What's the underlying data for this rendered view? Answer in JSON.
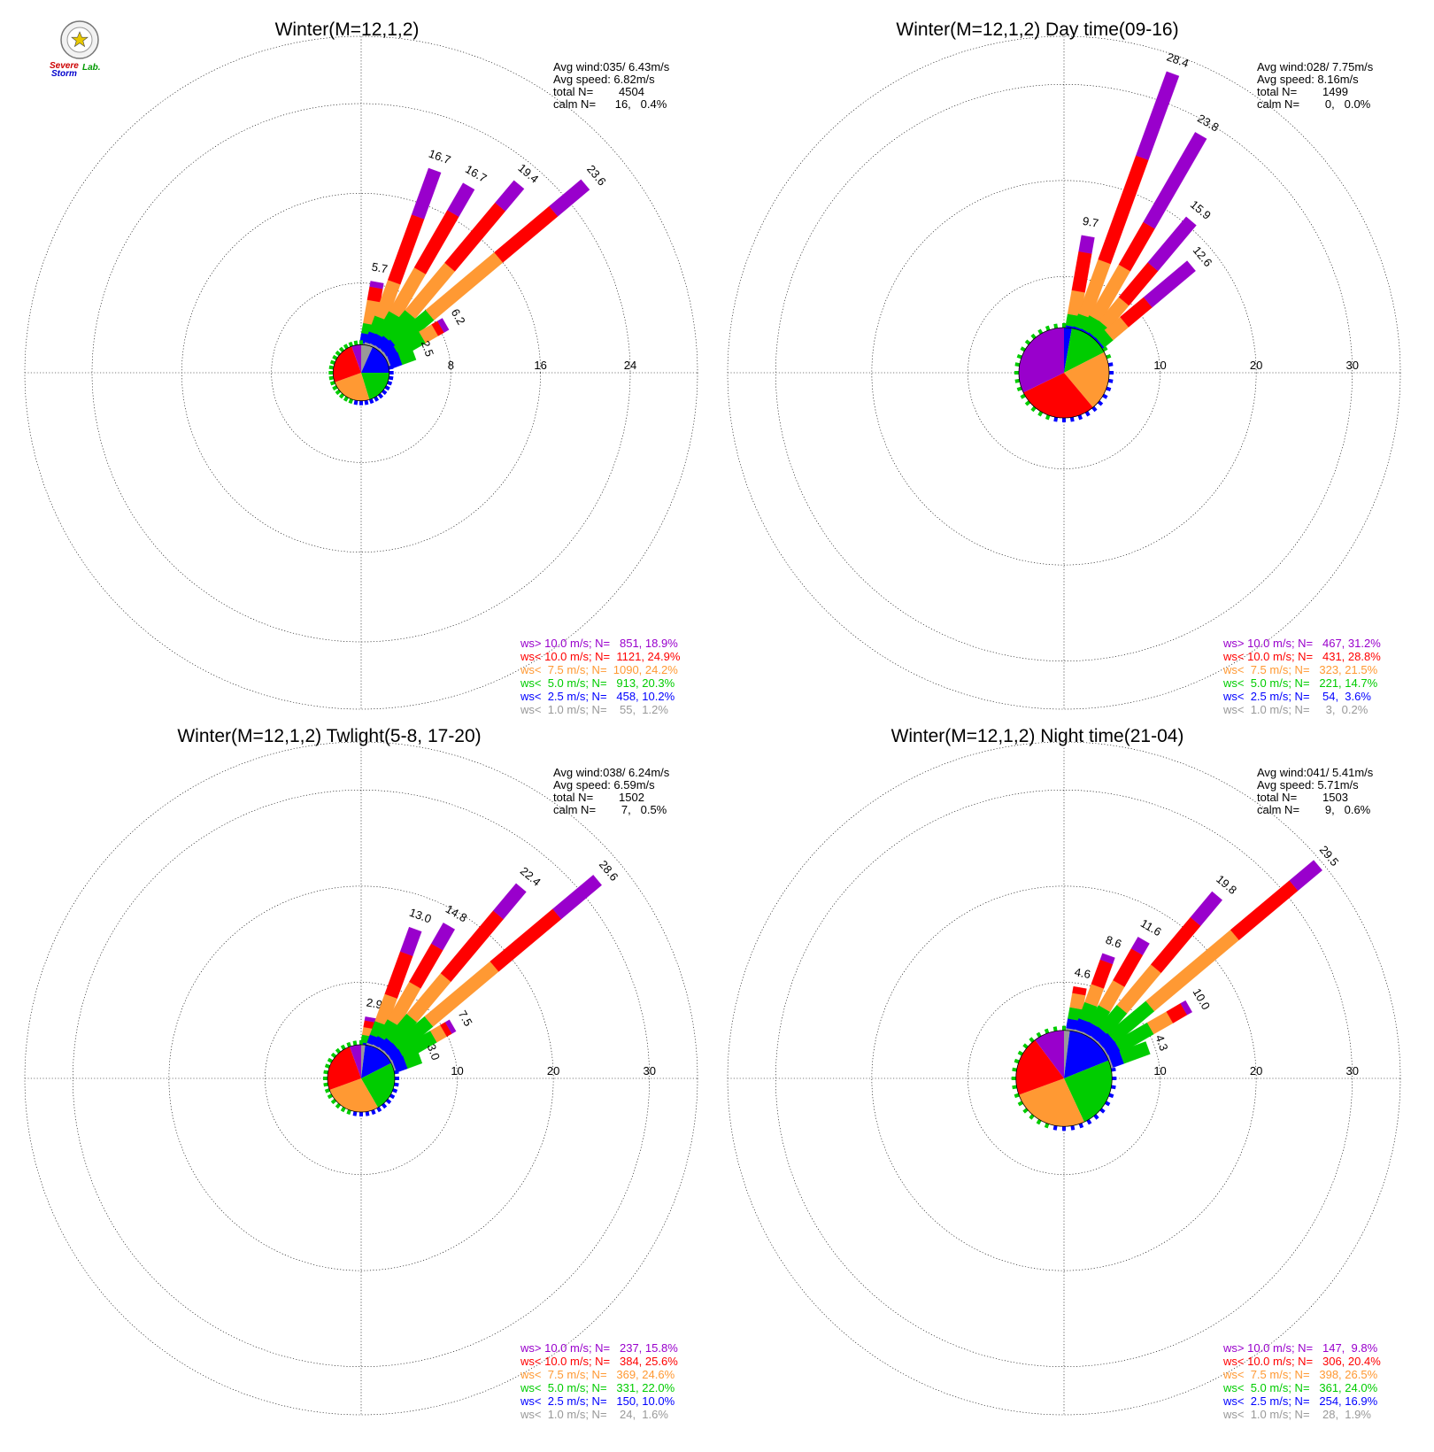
{
  "logo": {
    "text_a": "Severe",
    "text_b": "Storm",
    "text_c": "Lab."
  },
  "colors": {
    "ws_gt_10": "#9900cc",
    "ws_lt_10": "#ff0000",
    "ws_lt_7_5": "#ff9933",
    "ws_lt_5": "#00cc00",
    "ws_lt_2_5": "#0000ff",
    "ws_lt_1": "#999999"
  },
  "chart_data": [
    {
      "type": "windrose",
      "title": "Winter(M=12,1,2)",
      "max_radius": 30,
      "rings": [
        8,
        16,
        24
      ],
      "center_radius": 2.5,
      "info": [
        "Avg wind:035/ 6.43m/s",
        "Avg speed: 6.82m/s",
        "total N=        4504",
        "calm N=      16,   0.4%"
      ],
      "legend": [
        {
          "text": "ws> 10.0 m/s; N=   851, 18.9%",
          "color": "#9900cc"
        },
        {
          "text": "ws< 10.0 m/s; N=  1121, 24.9%",
          "color": "#ff0000"
        },
        {
          "text": "ws<  7.5 m/s; N=  1090, 24.2%",
          "color": "#ff9933"
        },
        {
          "text": "ws<  5.0 m/s; N=   913, 20.3%",
          "color": "#00cc00"
        },
        {
          "text": "ws<  2.5 m/s; N=   458, 10.2%",
          "color": "#0000ff"
        },
        {
          "text": "ws<  1.0 m/s; N=    55,  1.2%",
          "color": "#999999"
        }
      ],
      "pie": [
        {
          "from": 0,
          "to": 24,
          "color": "#999999"
        },
        {
          "from": 24,
          "to": 90,
          "color": "#0000ff"
        },
        {
          "from": 90,
          "to": 163,
          "color": "#00cc00"
        },
        {
          "from": 163,
          "to": 250,
          "color": "#ff9933"
        },
        {
          "from": 250,
          "to": 340,
          "color": "#ff0000"
        },
        {
          "from": 340,
          "to": 360,
          "color": "#9900cc"
        }
      ],
      "petals": [
        {
          "dir": 10,
          "total": 5.7,
          "label": "5.7",
          "segments": [
            0.1,
            0.9,
            0.9,
            2.1,
            1.2,
            0.5
          ]
        },
        {
          "dir": 20,
          "total": 16.7,
          "label": "16.7",
          "segments": [
            0.2,
            1.0,
            1.5,
            3.4,
            6.2,
            4.4
          ]
        },
        {
          "dir": 30,
          "total": 16.7,
          "label": "16.7",
          "segments": [
            0.2,
            1.0,
            2.3,
            4.5,
            5.9,
            2.8
          ]
        },
        {
          "dir": 40,
          "total": 19.4,
          "label": "19.4",
          "segments": [
            0.2,
            1.1,
            3.0,
            5.5,
            7.0,
            2.6
          ]
        },
        {
          "dir": 50,
          "total": 23.6,
          "label": "23.6",
          "segments": [
            0.2,
            1.2,
            4.1,
            8.0,
            6.4,
            3.7
          ]
        },
        {
          "dir": 60,
          "total": 6.2,
          "label": "6.2",
          "segments": [
            0.2,
            1.0,
            2.6,
            1.3,
            0.6,
            0.5
          ]
        },
        {
          "dir": 70,
          "total": 2.5,
          "label": "2.5",
          "segments": [
            0.2,
            1.0,
            1.3,
            0,
            0,
            0
          ]
        }
      ]
    },
    {
      "type": "windrose",
      "title": "Winter(M=12,1,2) Day time(09-16)",
      "max_radius": 35,
      "rings": [
        10,
        20,
        30
      ],
      "center_radius": 4.7,
      "info": [
        "Avg wind:028/ 7.75m/s",
        "Avg speed: 8.16m/s",
        "total N=        1499",
        "calm N=        0,   0.0%"
      ],
      "legend": [
        {
          "text": "ws> 10.0 m/s; N=   467, 31.2%",
          "color": "#9900cc"
        },
        {
          "text": "ws< 10.0 m/s; N=   431, 28.8%",
          "color": "#ff0000"
        },
        {
          "text": "ws<  7.5 m/s; N=   323, 21.5%",
          "color": "#ff9933"
        },
        {
          "text": "ws<  5.0 m/s; N=   221, 14.7%",
          "color": "#00cc00"
        },
        {
          "text": "ws<  2.5 m/s; N=    54,  3.6%",
          "color": "#0000ff"
        },
        {
          "text": "ws<  1.0 m/s; N=     3,  0.2%",
          "color": "#999999"
        }
      ],
      "pie": [
        {
          "from": 0,
          "to": 10,
          "color": "#0000ff"
        },
        {
          "from": 10,
          "to": 63,
          "color": "#00cc00"
        },
        {
          "from": 63,
          "to": 140,
          "color": "#ff9933"
        },
        {
          "from": 140,
          "to": 244,
          "color": "#ff0000"
        },
        {
          "from": 244,
          "to": 360,
          "color": "#9900cc"
        }
      ],
      "petals": [
        {
          "dir": 10,
          "total": 9.7,
          "label": "9.7",
          "segments": [
            0,
            0.2,
            1.2,
            2.5,
            4.1,
            1.7
          ]
        },
        {
          "dir": 20,
          "total": 28.4,
          "label": "28.4",
          "segments": [
            0,
            0.2,
            1.4,
            6.0,
            11.5,
            9.3
          ]
        },
        {
          "dir": 30,
          "total": 23.8,
          "label": "23.8",
          "segments": [
            0,
            0.2,
            1.6,
            6.1,
            5.1,
            10.8
          ]
        },
        {
          "dir": 40,
          "total": 15.9,
          "label": "15.9",
          "segments": [
            0,
            0.2,
            1.6,
            3.2,
            4.7,
            6.2
          ]
        },
        {
          "dir": 50,
          "total": 12.6,
          "label": "12.6",
          "segments": [
            0,
            0.2,
            1.2,
            2.1,
            3.2,
            5.9
          ]
        }
      ]
    },
    {
      "type": "windrose",
      "title": "Winter(M=12,1,2) Twlight(5-8, 17-20)",
      "max_radius": 35,
      "rings": [
        10,
        20,
        30
      ],
      "center_radius": 3.5,
      "info": [
        "Avg wind:038/ 6.24m/s",
        "Avg speed: 6.59m/s",
        "total N=        1502",
        "calm N=        7,   0.5%"
      ],
      "legend": [
        {
          "text": "ws> 10.0 m/s; N=   237, 15.8%",
          "color": "#9900cc"
        },
        {
          "text": "ws< 10.0 m/s; N=   384, 25.6%",
          "color": "#ff0000"
        },
        {
          "text": "ws<  7.5 m/s; N=   369, 24.6%",
          "color": "#ff9933"
        },
        {
          "text": "ws<  5.0 m/s; N=   331, 22.0%",
          "color": "#00cc00"
        },
        {
          "text": "ws<  2.5 m/s; N=   150, 10.0%",
          "color": "#0000ff"
        },
        {
          "text": "ws<  1.0 m/s; N=    24,  1.6%",
          "color": "#999999"
        }
      ],
      "pie": [
        {
          "from": 0,
          "to": 7,
          "color": "#999999"
        },
        {
          "from": 7,
          "to": 63,
          "color": "#0000ff"
        },
        {
          "from": 63,
          "to": 150,
          "color": "#00cc00"
        },
        {
          "from": 150,
          "to": 250,
          "color": "#ff9933"
        },
        {
          "from": 250,
          "to": 340,
          "color": "#ff0000"
        },
        {
          "from": 340,
          "to": 360,
          "color": "#9900cc"
        }
      ],
      "petals": [
        {
          "dir": 10,
          "total": 2.9,
          "label": "2.9",
          "segments": [
            0,
            0.2,
            0.8,
            0.8,
            0.7,
            0.4
          ]
        },
        {
          "dir": 20,
          "total": 13.0,
          "label": "13.0",
          "segments": [
            0.2,
            0.9,
            1.5,
            3.0,
            4.7,
            2.7
          ]
        },
        {
          "dir": 30,
          "total": 14.8,
          "label": "14.8",
          "segments": [
            0.2,
            1.0,
            2.0,
            4.5,
            4.6,
            2.5
          ]
        },
        {
          "dir": 40,
          "total": 22.4,
          "label": "22.4",
          "segments": [
            0.2,
            1.2,
            3.3,
            5.5,
            8.5,
            3.7
          ]
        },
        {
          "dir": 50,
          "total": 28.6,
          "label": "28.6",
          "segments": [
            0.2,
            1.2,
            4.3,
            8.9,
            8.5,
            5.5
          ]
        },
        {
          "dir": 60,
          "total": 7.5,
          "label": "7.5",
          "segments": [
            0.2,
            1.2,
            3.8,
            1.2,
            0.6,
            0.5
          ]
        },
        {
          "dir": 70,
          "total": 3.0,
          "label": "3.0",
          "segments": [
            0.2,
            1.2,
            1.6,
            0,
            0,
            0
          ]
        }
      ]
    },
    {
      "type": "windrose",
      "title": "Winter(M=12,1,2) Night time(21-04)",
      "max_radius": 35,
      "rings": [
        10,
        20,
        30
      ],
      "center_radius": 5.0,
      "info": [
        "Avg wind:041/ 5.41m/s",
        "Avg speed: 5.71m/s",
        "total N=        1503",
        "calm N=        9,   0.6%"
      ],
      "legend": [
        {
          "text": "ws> 10.0 m/s; N=   147,  9.8%",
          "color": "#9900cc"
        },
        {
          "text": "ws< 10.0 m/s; N=   306, 20.4%",
          "color": "#ff0000"
        },
        {
          "text": "ws<  7.5 m/s; N=   398, 26.5%",
          "color": "#ff9933"
        },
        {
          "text": "ws<  5.0 m/s; N=   361, 24.0%",
          "color": "#00cc00"
        },
        {
          "text": "ws<  2.5 m/s; N=   254, 16.9%",
          "color": "#0000ff"
        },
        {
          "text": "ws<  1.0 m/s; N=    28,  1.9%",
          "color": "#999999"
        }
      ],
      "pie": [
        {
          "from": 0,
          "to": 7,
          "color": "#999999"
        },
        {
          "from": 7,
          "to": 68,
          "color": "#0000ff"
        },
        {
          "from": 68,
          "to": 155,
          "color": "#00cc00"
        },
        {
          "from": 155,
          "to": 250,
          "color": "#ff9933"
        },
        {
          "from": 250,
          "to": 323,
          "color": "#ff0000"
        },
        {
          "from": 323,
          "to": 360,
          "color": "#9900cc"
        }
      ],
      "petals": [
        {
          "dir": 10,
          "total": 4.6,
          "label": "4.6",
          "segments": [
            0.2,
            1.0,
            1.2,
            1.5,
            0.7,
            0
          ]
        },
        {
          "dir": 20,
          "total": 8.6,
          "label": "8.6",
          "segments": [
            0.2,
            1.2,
            1.8,
            2.0,
            2.7,
            0.7
          ]
        },
        {
          "dir": 30,
          "total": 11.6,
          "label": "11.6",
          "segments": [
            0.2,
            1.2,
            2.0,
            3.0,
            3.8,
            1.4
          ]
        },
        {
          "dir": 40,
          "total": 19.8,
          "label": "19.8",
          "segments": [
            0.2,
            1.2,
            3.0,
            5.5,
            6.4,
            3.5
          ]
        },
        {
          "dir": 50,
          "total": 29.5,
          "label": "29.5",
          "segments": [
            0.2,
            1.3,
            5.2,
            11.5,
            8.0,
            3.3
          ]
        },
        {
          "dir": 60,
          "total": 10.0,
          "label": "10.0",
          "segments": [
            0.2,
            1.3,
            3.9,
            2.3,
            1.7,
            0.6
          ]
        },
        {
          "dir": 70,
          "total": 4.3,
          "label": "4.3",
          "segments": [
            0.2,
            1.2,
            2.9,
            0,
            0,
            0
          ]
        }
      ]
    }
  ]
}
